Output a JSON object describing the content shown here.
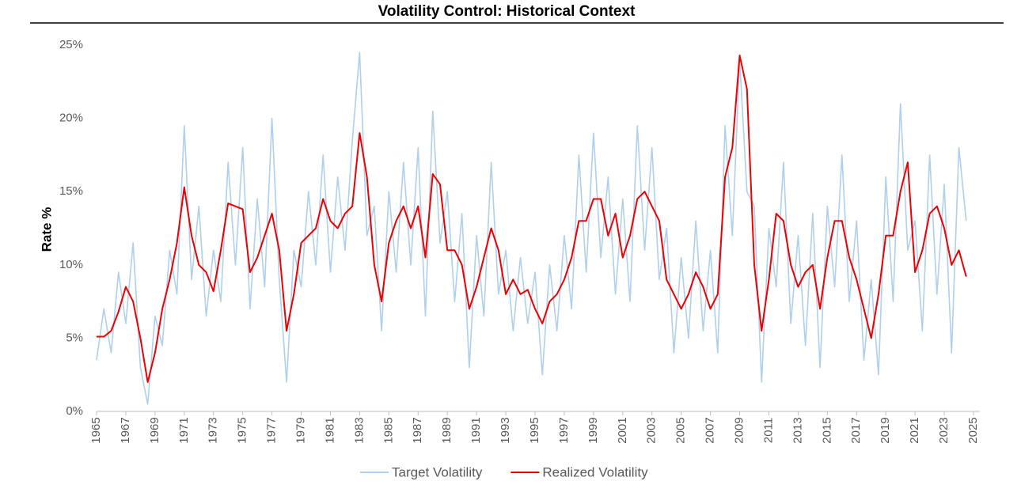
{
  "chart_data": {
    "type": "line",
    "title": "Volatility Control: Historical Context",
    "y_label": "Rate %",
    "x": [
      1965,
      1965.5,
      1966,
      1966.5,
      1967,
      1967.5,
      1968,
      1968.5,
      1969,
      1969.5,
      1970,
      1970.5,
      1971,
      1971.5,
      1972,
      1972.5,
      1973,
      1973.5,
      1974,
      1974.5,
      1975,
      1975.5,
      1976,
      1976.5,
      1977,
      1977.5,
      1978,
      1978.5,
      1979,
      1979.5,
      1980,
      1980.5,
      1981,
      1981.5,
      1982,
      1982.5,
      1983,
      1983.5,
      1984,
      1984.5,
      1985,
      1985.5,
      1986,
      1986.5,
      1987,
      1987.5,
      1988,
      1988.5,
      1989,
      1989.5,
      1990,
      1990.5,
      1991,
      1991.5,
      1992,
      1992.5,
      1993,
      1993.5,
      1994,
      1994.5,
      1995,
      1995.5,
      1996,
      1996.5,
      1997,
      1997.5,
      1998,
      1998.5,
      1999,
      1999.5,
      2000,
      2000.5,
      2001,
      2001.5,
      2002,
      2002.5,
      2003,
      2003.5,
      2004,
      2004.5,
      2005,
      2005.5,
      2006,
      2006.5,
      2007,
      2007.5,
      2008,
      2008.5,
      2009,
      2009.5,
      2010,
      2010.5,
      2011,
      2011.5,
      2012,
      2012.5,
      2013,
      2013.5,
      2014,
      2014.5,
      2015,
      2015.5,
      2016,
      2016.5,
      2017,
      2017.5,
      2018,
      2018.5,
      2019,
      2019.5,
      2020,
      2020.5,
      2021,
      2021.5,
      2022,
      2022.5,
      2023,
      2023.5,
      2024,
      2024.5
    ],
    "series": [
      {
        "name": "Target Volatility",
        "color": "#aed0ec",
        "width": 1.6,
        "values": [
          3.5,
          7.0,
          4.0,
          9.5,
          6.0,
          11.5,
          3.0,
          0.5,
          6.5,
          4.5,
          11.0,
          8.0,
          19.5,
          9.0,
          14.0,
          6.5,
          11.0,
          7.5,
          17.0,
          10.0,
          18.0,
          7.0,
          14.5,
          8.5,
          20.0,
          9.0,
          2.0,
          11.0,
          8.5,
          15.0,
          10.0,
          17.5,
          9.5,
          16.0,
          11.0,
          18.5,
          24.5,
          12.0,
          14.0,
          5.5,
          15.0,
          9.5,
          17.0,
          10.0,
          18.0,
          6.5,
          20.5,
          11.5,
          15.0,
          7.5,
          13.5,
          3.0,
          12.0,
          6.5,
          17.0,
          8.0,
          11.0,
          5.5,
          10.5,
          6.0,
          9.5,
          2.5,
          10.0,
          5.5,
          12.0,
          7.0,
          17.5,
          9.5,
          19.0,
          10.5,
          16.0,
          8.0,
          14.5,
          7.5,
          19.5,
          11.0,
          18.0,
          9.0,
          12.5,
          4.0,
          10.5,
          5.0,
          13.0,
          5.5,
          11.0,
          4.0,
          19.5,
          12.0,
          24.0,
          15.0,
          14.0,
          2.0,
          12.5,
          8.5,
          17.0,
          6.0,
          12.0,
          4.5,
          13.5,
          3.0,
          14.0,
          8.5,
          17.5,
          7.5,
          13.0,
          3.5,
          9.0,
          2.5,
          16.0,
          7.5,
          21.0,
          11.0,
          13.0,
          5.5,
          17.5,
          8.0,
          15.5,
          4.0,
          18.0,
          13.0
        ]
      },
      {
        "name": "Realized Volatility",
        "color": "#ee0000",
        "width": 2,
        "values": [
          5.1,
          5.1,
          5.5,
          6.8,
          8.5,
          7.5,
          5.0,
          2.0,
          4.0,
          7.0,
          9.0,
          11.5,
          15.3,
          12.0,
          10.0,
          9.5,
          8.2,
          11.0,
          14.2,
          14.0,
          13.8,
          9.5,
          10.5,
          12.0,
          13.5,
          11.0,
          5.5,
          8.0,
          11.5,
          12.0,
          12.5,
          14.5,
          13.0,
          12.5,
          13.5,
          14.0,
          19.0,
          16.0,
          10.0,
          7.5,
          11.5,
          13.0,
          14.0,
          12.5,
          14.0,
          10.5,
          16.2,
          15.5,
          11.0,
          11.0,
          10.0,
          7.0,
          8.5,
          10.5,
          12.5,
          11.0,
          8.0,
          9.0,
          8.0,
          8.3,
          7.0,
          6.0,
          7.5,
          8.0,
          9.0,
          10.5,
          13.0,
          13.0,
          14.5,
          14.5,
          12.0,
          13.5,
          10.5,
          12.0,
          14.5,
          15.0,
          14.0,
          13.0,
          9.0,
          8.0,
          7.0,
          8.0,
          9.5,
          8.5,
          7.0,
          8.0,
          16.0,
          18.0,
          24.3,
          22.0,
          10.0,
          5.5,
          9.0,
          13.5,
          13.0,
          10.0,
          8.5,
          9.5,
          10.0,
          7.0,
          10.5,
          13.0,
          13.0,
          10.5,
          9.0,
          7.0,
          5.0,
          8.0,
          12.0,
          12.0,
          15.0,
          17.0,
          9.5,
          11.0,
          13.5,
          14.0,
          12.5,
          10.0,
          11.0,
          9.2
        ]
      }
    ],
    "xlim": [
      1965,
      2025
    ],
    "xticks": [
      1965,
      1967,
      1969,
      1971,
      1973,
      1975,
      1977,
      1979,
      1981,
      1983,
      1985,
      1987,
      1989,
      1991,
      1993,
      1995,
      1997,
      1999,
      2001,
      2003,
      2005,
      2007,
      2009,
      2011,
      2013,
      2015,
      2017,
      2019,
      2021,
      2023,
      2025
    ],
    "ylim": [
      0,
      25
    ],
    "yticks": [
      {
        "value": 0,
        "label": "0%"
      },
      {
        "value": 5,
        "label": "5%"
      },
      {
        "value": 10,
        "label": "10%"
      },
      {
        "value": 15,
        "label": "15%"
      },
      {
        "value": 20,
        "label": "20%"
      },
      {
        "value": 25,
        "label": "25%"
      }
    ],
    "legend": "bottom"
  }
}
